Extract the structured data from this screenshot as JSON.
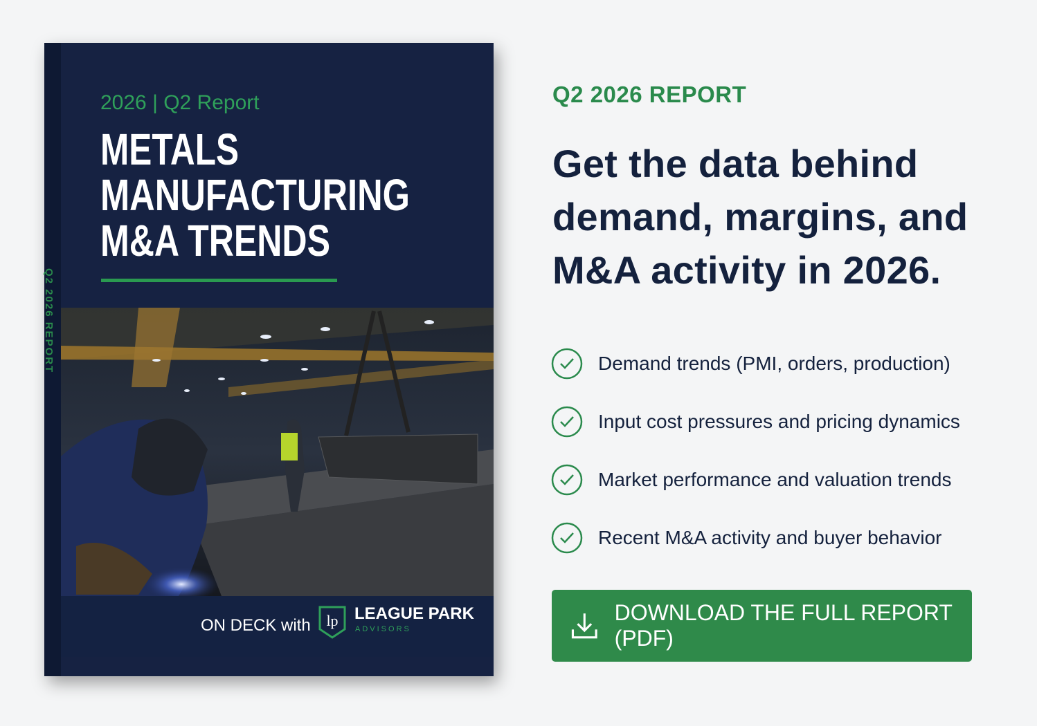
{
  "cover": {
    "eyebrow": "2026 | Q2 Report",
    "title": [
      "METALS",
      "MANUFACTURING",
      "M&A TRENDS"
    ],
    "spine": "Q2 2026 REPORT",
    "footer": "ON DECK with",
    "logo_mark": "lp",
    "brand": "LEAGUE PARK",
    "brand_sub": "ADVISORS"
  },
  "eyebrow": "Q2 2026 REPORT",
  "headline": [
    "Get the data behind",
    "demand, margins, and",
    "M&A activity in 2026."
  ],
  "bullets": [
    "Demand trends (PMI, orders, production)",
    "Input cost pressures and pricing dynamics",
    "Market performance and valuation trends",
    "Recent M&A activity and buyer behavior"
  ],
  "button": "DOWNLOAD THE FULL REPORT (PDF)"
}
